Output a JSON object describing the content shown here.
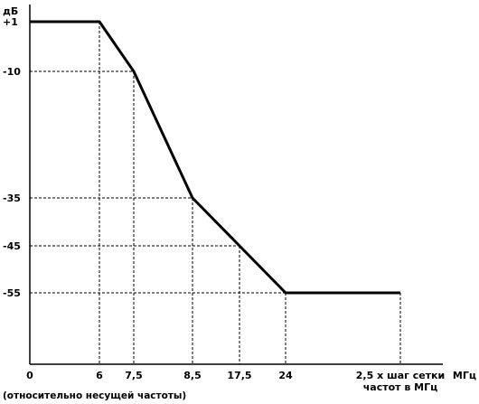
{
  "chart_data": {
    "type": "line",
    "ylabel": "дБ",
    "xlabel": "МГц",
    "x_note": "(относительно несущей частоты)",
    "x_ticks": [
      {
        "label": "0",
        "slot": 0
      },
      {
        "label": "6",
        "slot": 1
      },
      {
        "label": "7,5",
        "slot": 2
      },
      {
        "label": "8,5",
        "slot": 3
      },
      {
        "label": "17,5",
        "slot": 4
      },
      {
        "label": "24",
        "slot": 5
      },
      {
        "label_lines": [
          "2,5 х шаг сетки",
          "частот в МГц"
        ],
        "slot": 6
      }
    ],
    "y_ticks": [
      {
        "label": "+1",
        "value": 1
      },
      {
        "label": "-10",
        "value": -10
      },
      {
        "label": "-35",
        "value": -35
      },
      {
        "label": "-45",
        "value": -45
      },
      {
        "label": "-55",
        "value": -55
      }
    ],
    "series": [
      {
        "points": [
          {
            "x_slot": 0,
            "y": 1
          },
          {
            "x_slot": 1,
            "y": 1
          },
          {
            "x_slot": 2,
            "y": -10
          },
          {
            "x_slot": 3,
            "y": -35
          },
          {
            "x_slot": 4,
            "y": -45
          },
          {
            "x_slot": 5,
            "y": -55
          },
          {
            "x_slot": 6,
            "y": -55
          }
        ]
      }
    ],
    "ylim": [
      -70,
      8
    ],
    "grid": "dashed guide lines at breakpoints"
  }
}
